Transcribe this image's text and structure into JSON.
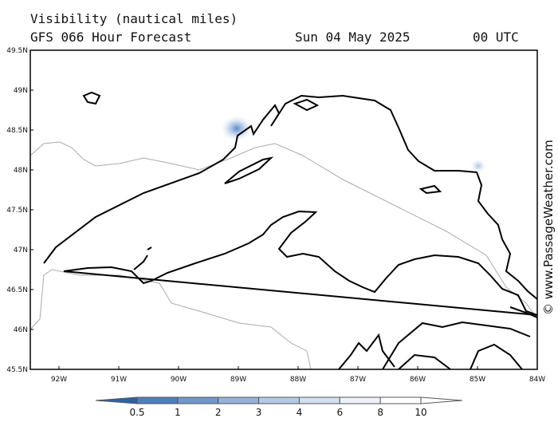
{
  "header": {
    "title": "Visibility (nautical miles)",
    "model": "GFS 066 Hour Forecast",
    "date": "Sun 04 May 2025",
    "time": "00 UTC"
  },
  "map": {
    "lat_labels": [
      "49.5N",
      "49N",
      "48.5N",
      "48N",
      "47.5N",
      "47N",
      "46.5N",
      "46N",
      "45.5N"
    ],
    "lon_labels": [
      "92W",
      "91W",
      "90W",
      "89W",
      "88W",
      "87W",
      "86W",
      "85W",
      "84W"
    ]
  },
  "colorbar": {
    "ticks": [
      0.5,
      1,
      2,
      3,
      4,
      6,
      8,
      10
    ]
  },
  "credit": "© www.PassageWeather.com"
}
